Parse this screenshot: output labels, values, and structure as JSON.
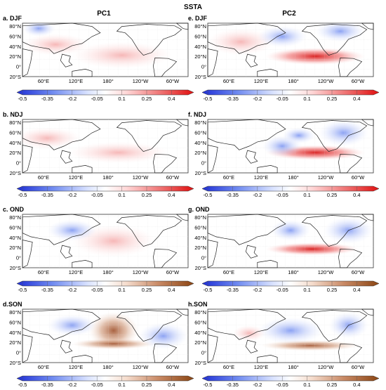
{
  "title": "SSTA",
  "columns": [
    "PC1",
    "PC2"
  ],
  "panels": [
    {
      "label": "a. DJF"
    },
    {
      "label": "e. DJF"
    },
    {
      "label": "b. NDJ"
    },
    {
      "label": "f. NDJ"
    },
    {
      "label": "c. OND"
    },
    {
      "label": "g. OND"
    },
    {
      "label": "d.SON"
    },
    {
      "label": "h.SON"
    }
  ],
  "lat_labels": [
    "80°N",
    "60°N",
    "40°N",
    "20°N",
    "0°",
    "20°S"
  ],
  "lon_labels": [
    "60°E",
    "120°E",
    "180°",
    "120°W",
    "60°W"
  ],
  "colorbar_ticks": [
    "-0.5",
    "-0.35",
    "-0.2",
    "-0.05",
    "0.1",
    "0.25",
    "0.4"
  ],
  "colorbar_range": [
    -0.5,
    0.5
  ],
  "colors": {
    "negative_strong": "#1f2fd6",
    "negative_light": "#cfd9ff",
    "zero": "#ffffff",
    "positive_light": "#ffd0d0",
    "positive_strong": "#e01010",
    "brown_end": "#8b4513",
    "land_stipple": "#aaaaaa"
  }
}
